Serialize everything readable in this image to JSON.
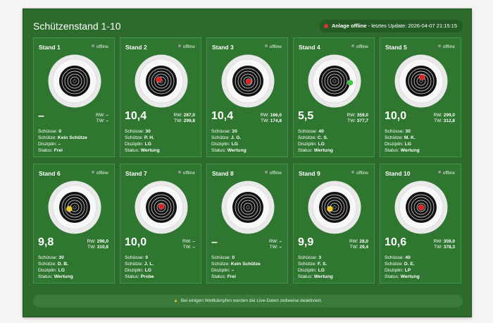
{
  "header": {
    "title": "Schützenstand 1-10",
    "status_strong": "Anlage offline",
    "status_rest": " - letztes Update: 2026-04-07 21:15:15"
  },
  "labels": {
    "shots": "Schüsse:",
    "shooter": "Schütze:",
    "discipline": "Disziplin:",
    "status": "Status:",
    "rw": "RW:",
    "tw": "TW:"
  },
  "colors": {
    "panel_green": "#2c6b2c",
    "card_green": "#2f7630",
    "shot_red": "#e02020",
    "shot_green": "#3ec93e",
    "shot_yellow": "#f2c81e",
    "offline_gray": "#8f9a8f",
    "alert_red": "#e03131"
  },
  "stands": [
    {
      "title": "Stand 1",
      "conn": "offline",
      "score": "–",
      "rw": "–",
      "tw": "–",
      "shots": "0",
      "shooter": "Kein Schütze",
      "discipline": "–",
      "status": "Frei",
      "shot_color": null,
      "shot_pos": null
    },
    {
      "title": "Stand 2",
      "conn": "offline",
      "score": "10,4",
      "rw": "287,0",
      "tw": "299,8",
      "shots": "30",
      "shooter": "P. H.",
      "discipline": "LG",
      "status": "Wertung",
      "shot_color": "#e02020",
      "shot_pos": [
        -0.15,
        -0.1
      ]
    },
    {
      "title": "Stand 3",
      "conn": "offline",
      "score": "10,4",
      "rw": "166,0",
      "tw": "174,8",
      "shots": "20",
      "shooter": "J. G.",
      "discipline": "LG",
      "status": "Wertung",
      "shot_color": "#e02020",
      "shot_pos": [
        0.05,
        0.02
      ]
    },
    {
      "title": "Stand 4",
      "conn": "offline",
      "score": "5,5",
      "rw": "359,0",
      "tw": "377,7",
      "shots": "40",
      "shooter": "C. S.",
      "discipline": "LG",
      "status": "Wertung",
      "shot_color": "#3ec93e",
      "shot_pos": [
        1.02,
        0.1
      ]
    },
    {
      "title": "Stand 5",
      "conn": "offline",
      "score": "10,0",
      "rw": "299,0",
      "tw": "312,8",
      "shots": "30",
      "shooter": "M. K.",
      "discipline": "LG",
      "status": "Wertung",
      "shot_color": "#e02020",
      "shot_pos": [
        0.05,
        -0.25
      ]
    },
    {
      "title": "Stand 6",
      "conn": "offline",
      "score": "9,8",
      "rw": "296,0",
      "tw": "310,8",
      "shots": "30",
      "shooter": "D. B.",
      "discipline": "LG",
      "status": "Wertung",
      "shot_color": "#f2c81e",
      "shot_pos": [
        -0.35,
        0.1
      ]
    },
    {
      "title": "Stand 7",
      "conn": "offline",
      "score": "10,0",
      "rw": "–",
      "tw": "–",
      "shots": "0",
      "shooter": "J. L.",
      "discipline": "LG",
      "status": "Probe",
      "shot_color": "#e02020",
      "shot_pos": [
        0,
        -0.05
      ]
    },
    {
      "title": "Stand 8",
      "conn": "offline",
      "score": "–",
      "rw": "–",
      "tw": "–",
      "shots": "0",
      "shooter": "Kein Schütze",
      "discipline": "–",
      "status": "Frei",
      "shot_color": null,
      "shot_pos": null
    },
    {
      "title": "Stand 9",
      "conn": "offline",
      "score": "9,9",
      "rw": "28,0",
      "tw": "29,4",
      "shots": "3",
      "shooter": "F. S.",
      "discipline": "LG",
      "status": "Wertung",
      "shot_color": "#f2c81e",
      "shot_pos": [
        -0.3,
        0.1
      ]
    },
    {
      "title": "Stand 10",
      "conn": "offline",
      "score": "10,6",
      "rw": "359,0",
      "tw": "378,3",
      "shots": "40",
      "shooter": "D. E.",
      "discipline": "LP",
      "status": "Wertung",
      "shot_color": "#e02020",
      "shot_pos": [
        0,
        0
      ]
    }
  ],
  "notice": {
    "icon": "warning-icon",
    "text": "Bei einigen Wettkämpfen werden die Live-Daten zeitweise deaktiviert."
  }
}
